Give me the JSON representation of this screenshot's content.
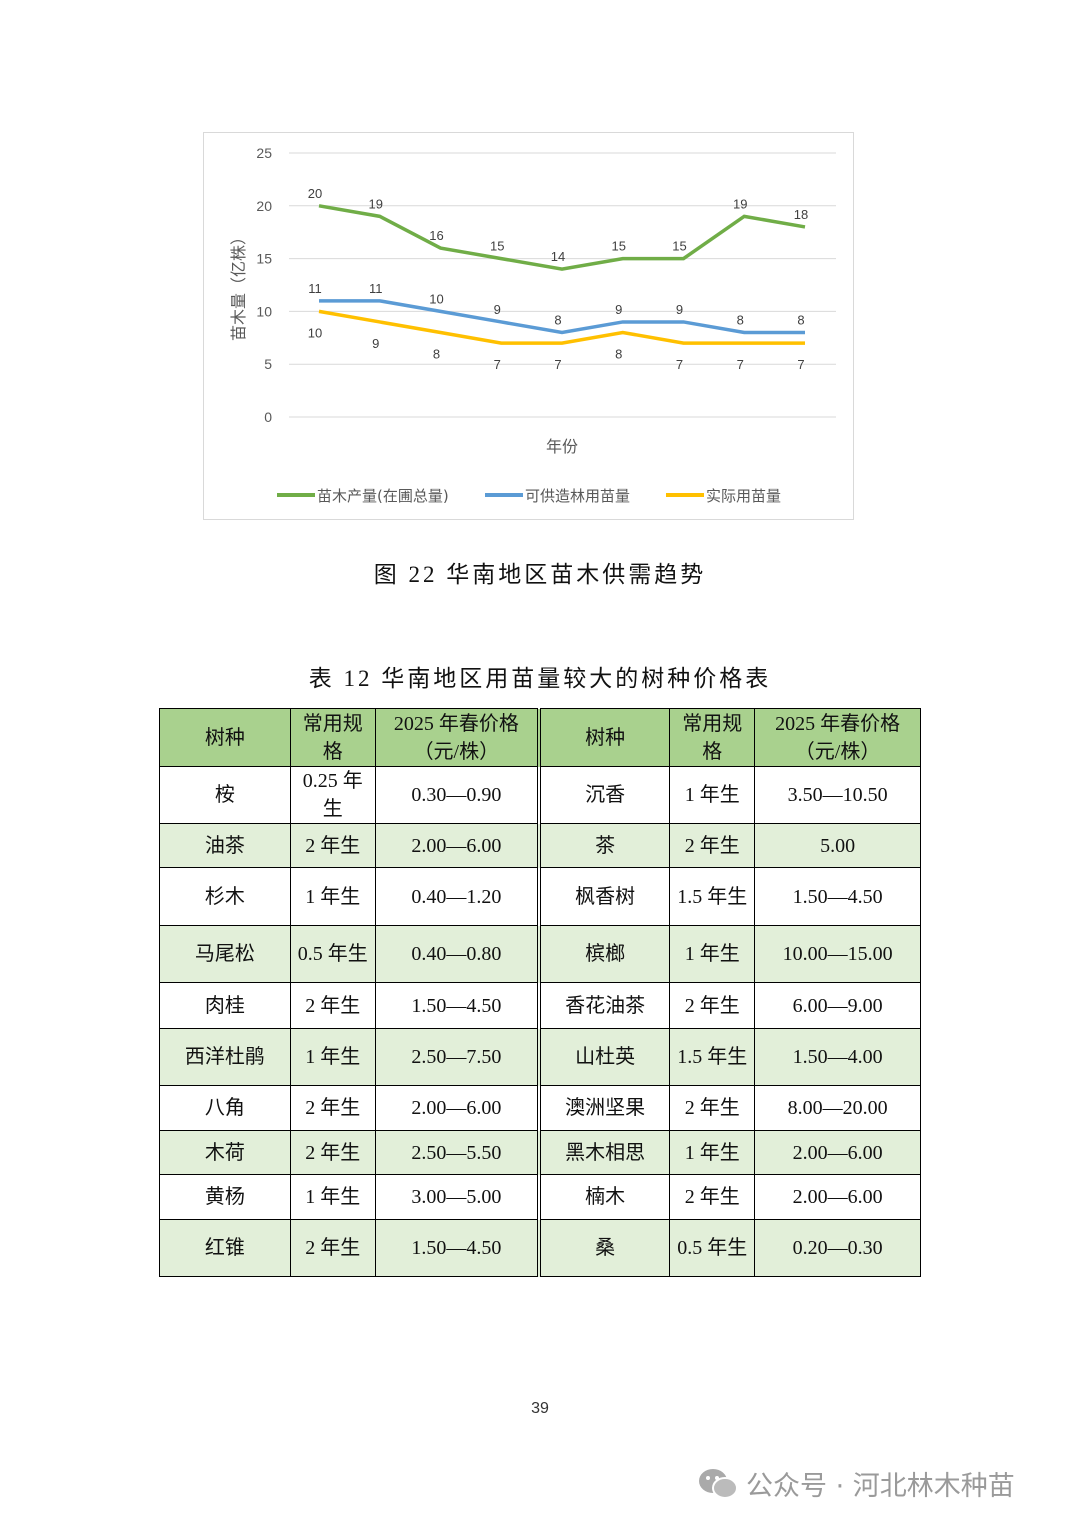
{
  "chart_data": {
    "type": "line",
    "xlabel": "年份",
    "ylabel": "苗木量（亿株）",
    "ylim": [
      0,
      25
    ],
    "yticks": [
      0,
      5,
      10,
      15,
      20,
      25
    ],
    "grid": true,
    "legend_position": "bottom",
    "series": [
      {
        "name": "苗木产量(在圃总量)",
        "color": "#70ad47",
        "values": [
          20,
          19,
          16,
          15,
          14,
          15,
          15,
          19,
          18
        ]
      },
      {
        "name": "可供造林用苗量",
        "color": "#5b9bd5",
        "values": [
          11,
          11,
          10,
          9,
          8,
          9,
          9,
          8,
          8
        ]
      },
      {
        "name": "实际用苗量",
        "color": "#ffc000",
        "values": [
          10,
          9,
          8,
          7,
          7,
          8,
          7,
          7,
          7
        ]
      }
    ]
  },
  "figure_caption": "图 22  华南地区苗木供需趋势",
  "table_caption": "表 12  华南地区用苗量较大的树种价格表",
  "table": {
    "headers": [
      "树种",
      "常用规格",
      "2025 年春价格（元/株）",
      "树种",
      "常用规格",
      "2025 年春价格（元/株）"
    ],
    "rows": [
      [
        "桉",
        "0.25 年生",
        "0.30—0.90",
        "沉香",
        "1 年生",
        "3.50—10.50"
      ],
      [
        "油茶",
        "2 年生",
        "2.00—6.00",
        "茶",
        "2 年生",
        "5.00"
      ],
      [
        "杉木",
        "1 年生",
        "0.40—1.20",
        "枫香树",
        "1.5 年生",
        "1.50—4.50"
      ],
      [
        "马尾松",
        "0.5 年生",
        "0.40—0.80",
        "槟榔",
        "1 年生",
        "10.00—15.00"
      ],
      [
        "肉桂",
        "2 年生",
        "1.50—4.50",
        "香花油茶",
        "2 年生",
        "6.00—9.00"
      ],
      [
        "西洋杜鹃",
        "1 年生",
        "2.50—7.50",
        "山杜英",
        "1.5 年生",
        "1.50—4.00"
      ],
      [
        "八角",
        "2 年生",
        "2.00—6.00",
        "澳洲坚果",
        "2 年生",
        "8.00—20.00"
      ],
      [
        "木荷",
        "2 年生",
        "2.50—5.50",
        "黑木相思",
        "1 年生",
        "2.00—6.00"
      ],
      [
        "黄杨",
        "1 年生",
        "3.00—5.00",
        "楠木",
        "2 年生",
        "2.00—6.00"
      ],
      [
        "红锥",
        "2 年生",
        "1.50—4.50",
        "桑",
        "0.5 年生",
        "0.20—0.30"
      ]
    ]
  },
  "page_number": "39",
  "watermark": "公众号 · 河北林木种苗"
}
